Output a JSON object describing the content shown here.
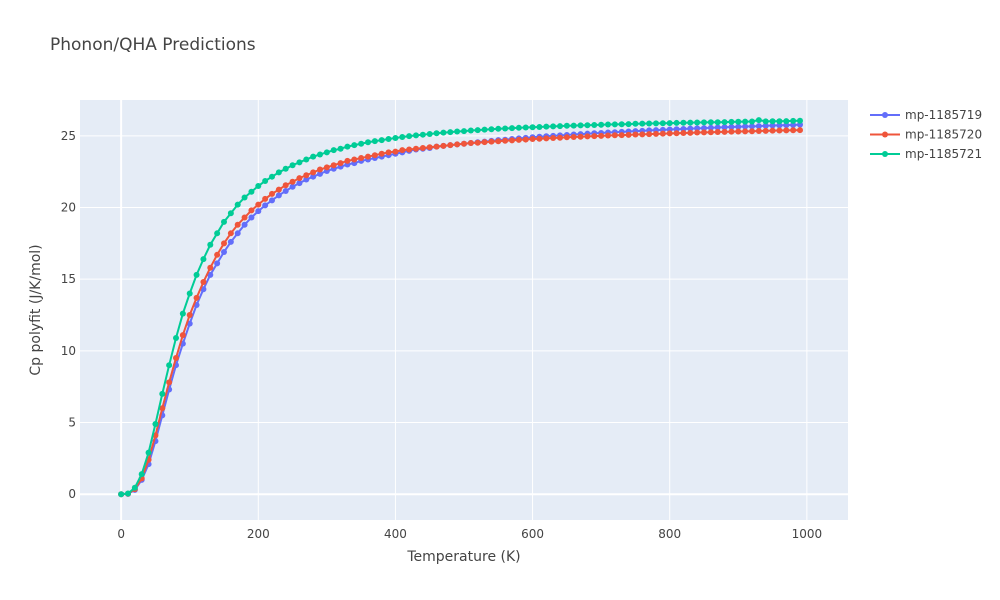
{
  "chart_data": {
    "type": "line",
    "title": "Phonon/QHA Predictions",
    "xlabel": "Temperature (K)",
    "ylabel": "Cp polyfit (J/K/mol)",
    "xlim": [
      -60,
      1060
    ],
    "ylim": [
      -1.8,
      27.5
    ],
    "xticks": [
      0,
      200,
      400,
      600,
      800,
      1000
    ],
    "yticks": [
      0,
      5,
      10,
      15,
      20,
      25
    ],
    "grid": true,
    "legend_position": "top-right",
    "colors": {
      "plot_bg": "#e5ecf6",
      "grid": "#ffffff",
      "text": "#444444"
    },
    "x": [
      0,
      10,
      20,
      30,
      40,
      50,
      60,
      70,
      80,
      90,
      100,
      110,
      120,
      130,
      140,
      150,
      160,
      170,
      180,
      190,
      200,
      210,
      220,
      230,
      240,
      250,
      260,
      270,
      280,
      290,
      300,
      310,
      320,
      330,
      340,
      350,
      360,
      370,
      380,
      390,
      400,
      410,
      420,
      430,
      440,
      450,
      460,
      470,
      480,
      490,
      500,
      510,
      520,
      530,
      540,
      550,
      560,
      570,
      580,
      590,
      600,
      610,
      620,
      630,
      640,
      650,
      660,
      670,
      680,
      690,
      700,
      710,
      720,
      730,
      740,
      750,
      760,
      770,
      780,
      790,
      800,
      810,
      820,
      830,
      840,
      850,
      860,
      870,
      880,
      890,
      900,
      910,
      920,
      930,
      940,
      950,
      960,
      970,
      980,
      990
    ],
    "series": [
      {
        "name": "mp-1185719",
        "color": "#636efa",
        "values": [
          0,
          0.02,
          0.3,
          1.0,
          2.1,
          3.7,
          5.5,
          7.3,
          9.0,
          10.5,
          11.9,
          13.2,
          14.3,
          15.3,
          16.1,
          16.9,
          17.6,
          18.2,
          18.8,
          19.3,
          19.75,
          20.15,
          20.5,
          20.85,
          21.15,
          21.45,
          21.7,
          21.95,
          22.15,
          22.35,
          22.55,
          22.7,
          22.85,
          23.0,
          23.1,
          23.25,
          23.35,
          23.45,
          23.55,
          23.65,
          23.75,
          23.85,
          23.95,
          24.05,
          24.1,
          24.15,
          24.25,
          24.3,
          24.35,
          24.4,
          24.45,
          24.5,
          24.55,
          24.6,
          24.65,
          24.7,
          24.73,
          24.78,
          24.82,
          24.86,
          24.9,
          24.94,
          24.97,
          25.0,
          25.03,
          25.06,
          25.09,
          25.12,
          25.15,
          25.18,
          25.2,
          25.23,
          25.25,
          25.28,
          25.3,
          25.33,
          25.35,
          25.38,
          25.4,
          25.42,
          25.44,
          25.46,
          25.48,
          25.5,
          25.52,
          25.54,
          25.56,
          25.58,
          25.6,
          25.62,
          25.63,
          25.65,
          25.66,
          25.68,
          25.7,
          25.72,
          25.73,
          25.75,
          25.76,
          25.78
        ]
      },
      {
        "name": "mp-1185720",
        "color": "#ef553b",
        "values": [
          0,
          0.03,
          0.35,
          1.1,
          2.4,
          4.1,
          6.0,
          7.8,
          9.5,
          11.1,
          12.5,
          13.7,
          14.8,
          15.8,
          16.7,
          17.5,
          18.2,
          18.8,
          19.3,
          19.8,
          20.2,
          20.6,
          20.95,
          21.25,
          21.55,
          21.8,
          22.05,
          22.25,
          22.45,
          22.65,
          22.8,
          22.95,
          23.1,
          23.25,
          23.35,
          23.45,
          23.55,
          23.65,
          23.75,
          23.85,
          23.9,
          24.0,
          24.05,
          24.1,
          24.15,
          24.2,
          24.25,
          24.3,
          24.35,
          24.4,
          24.45,
          24.5,
          24.52,
          24.56,
          24.6,
          24.62,
          24.66,
          24.68,
          24.72,
          24.74,
          24.78,
          24.8,
          24.82,
          24.85,
          24.87,
          24.9,
          24.92,
          24.94,
          24.96,
          24.98,
          25.0,
          25.02,
          25.04,
          25.05,
          25.07,
          25.09,
          25.1,
          25.12,
          25.14,
          25.15,
          25.17,
          25.18,
          25.2,
          25.21,
          25.23,
          25.24,
          25.25,
          25.27,
          25.28,
          25.29,
          25.3,
          25.31,
          25.32,
          25.34,
          25.35,
          25.36,
          25.37,
          25.38,
          25.39,
          25.4
        ]
      },
      {
        "name": "mp-1185721",
        "color": "#00cc96",
        "values": [
          0,
          0.05,
          0.45,
          1.4,
          2.9,
          4.9,
          7.0,
          9.0,
          10.9,
          12.6,
          14.0,
          15.3,
          16.4,
          17.4,
          18.2,
          19.0,
          19.6,
          20.2,
          20.7,
          21.1,
          21.5,
          21.85,
          22.15,
          22.45,
          22.7,
          22.95,
          23.15,
          23.35,
          23.55,
          23.7,
          23.85,
          24.0,
          24.1,
          24.25,
          24.35,
          24.45,
          24.55,
          24.63,
          24.7,
          24.78,
          24.85,
          24.92,
          24.98,
          25.03,
          25.08,
          25.13,
          25.18,
          25.22,
          25.26,
          25.3,
          25.33,
          25.37,
          25.4,
          25.43,
          25.46,
          25.49,
          25.51,
          25.54,
          25.56,
          25.58,
          25.6,
          25.62,
          25.64,
          25.66,
          25.68,
          25.7,
          25.71,
          25.73,
          25.74,
          25.76,
          25.77,
          25.79,
          25.8,
          25.81,
          25.82,
          25.84,
          25.85,
          25.86,
          25.87,
          25.88,
          25.89,
          25.9,
          25.91,
          25.92,
          25.93,
          25.94,
          25.95,
          25.95,
          25.96,
          25.97,
          25.98,
          25.99,
          26.0,
          26.1,
          26.01,
          26.02,
          26.02,
          26.03,
          26.04,
          26.05
        ]
      }
    ]
  }
}
